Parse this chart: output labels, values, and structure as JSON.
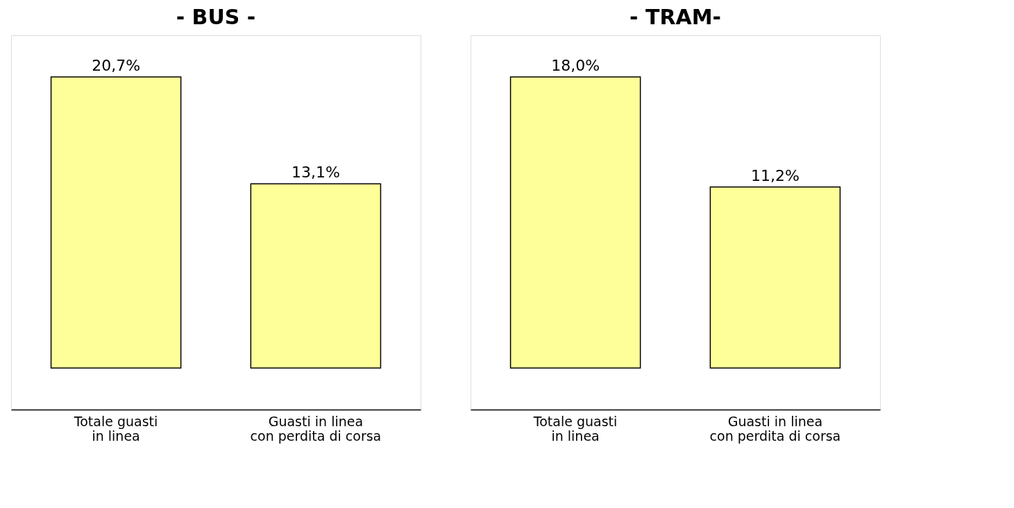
{
  "chart_data": [
    {
      "type": "bar",
      "title": "- BUS -",
      "categories": [
        "Totale guasti\nin linea",
        "Guasti in linea\ncon perdita di corsa"
      ],
      "values": [
        20.7,
        13.1
      ],
      "color": "#ffff99",
      "value_labels": [
        "20,7%",
        "13,1%"
      ],
      "grid": false
    },
    {
      "type": "bar",
      "title": "- TRAM-",
      "categories": [
        "Totale guasti\nin linea",
        "Guasti in linea\ncon perdita di corsa"
      ],
      "values": [
        18.0,
        11.2
      ],
      "color": "#ffff99",
      "value_labels": [
        "18,0%",
        "11,2%"
      ],
      "grid": false
    }
  ]
}
